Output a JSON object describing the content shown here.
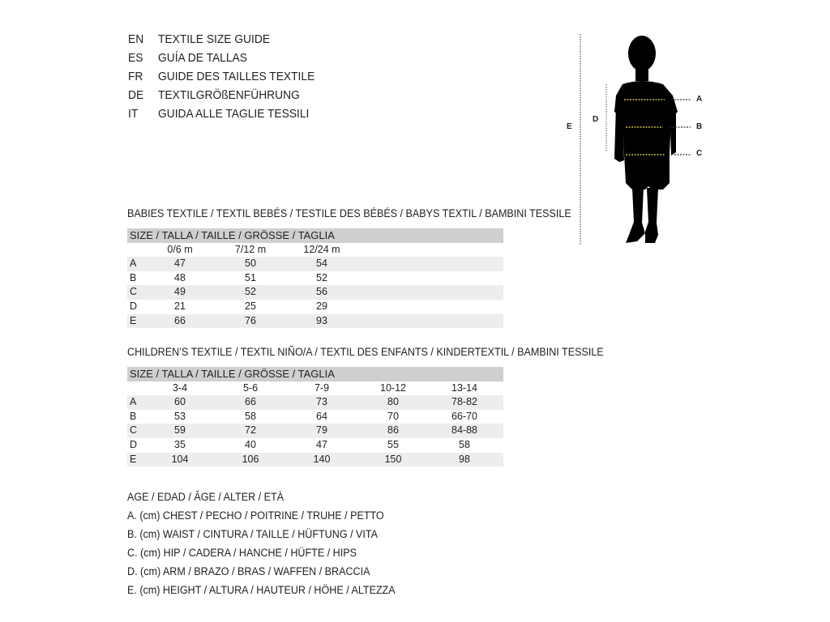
{
  "guide_titles": [
    {
      "code": "EN",
      "title": "TEXTILE SIZE GUIDE"
    },
    {
      "code": "ES",
      "title": "GUÍA DE TALLAS"
    },
    {
      "code": "FR",
      "title": "GUIDE DES TAILLES TEXTILE"
    },
    {
      "code": "DE",
      "title": "TEXTILGRÖßENFÜHRUNG"
    },
    {
      "code": "IT",
      "title": "GUIDA ALLE TAGLIE TESSILI"
    }
  ],
  "figure": {
    "labels": {
      "a": "A",
      "b": "B",
      "c": "C",
      "d": "D",
      "e": "E"
    },
    "measure_line_color": "#f2e55c"
  },
  "babies": {
    "heading": "BABIES TEXTILE / TEXTIL BEBÉS / TESTILE DES BÉBÉS / BABYS TEXTIL / BAMBINI TESSILE",
    "size_header": "SIZE / TALLA / TAILLE / GRÖSSE / TAGLIA",
    "columns": [
      "0/6 m",
      "7/12 m",
      "12/24 m"
    ],
    "rows": [
      {
        "label": "A",
        "values": [
          "47",
          "50",
          "54"
        ]
      },
      {
        "label": "B",
        "values": [
          "48",
          "51",
          "52"
        ]
      },
      {
        "label": "C",
        "values": [
          "49",
          "52",
          "56"
        ]
      },
      {
        "label": "D",
        "values": [
          "21",
          "25",
          "29"
        ]
      },
      {
        "label": "E",
        "values": [
          "66",
          "76",
          "93"
        ]
      }
    ]
  },
  "children": {
    "heading": "CHILDREN’S TEXTILE / TEXTIL NIÑO/A / TEXTIL DES ENFANTS / KINDERTEXTIL / BAMBINI TESSILE",
    "size_header": "SIZE / TALLA / TAILLE / GRÖSSE / TAGLIA",
    "columns": [
      "3-4",
      "5-6",
      "7-9",
      "10-12",
      "13-14"
    ],
    "rows": [
      {
        "label": "A",
        "values": [
          "60",
          "66",
          "73",
          "80",
          "78-82"
        ]
      },
      {
        "label": "B",
        "values": [
          "53",
          "58",
          "64",
          "70",
          "66-70"
        ]
      },
      {
        "label": "C",
        "values": [
          "59",
          "72",
          "79",
          "86",
          "84-88"
        ]
      },
      {
        "label": "D",
        "values": [
          "35",
          "40",
          "47",
          "55",
          "58"
        ]
      },
      {
        "label": "E",
        "values": [
          "104",
          "106",
          "140",
          "150",
          "98"
        ]
      }
    ]
  },
  "legend": [
    "AGE / EDAD / ÂGE / ALTER / ETÀ",
    "A. (cm) CHEST / PECHO / POITRINE / TRUHE / PETTO",
    "B. (cm) WAIST / CINTURA / TAILLE / HÜFTUNG / VITA",
    "C. (cm) HIP / CADERA / HANCHE / HÜFTE / HIPS",
    "D. (cm) ARM / BRAZO / BRAS / WAFFEN / BRACCIA",
    "E. (cm) HEIGHT / ALTURA / HAUTEUR / HÖHE / ALTEZZA"
  ]
}
